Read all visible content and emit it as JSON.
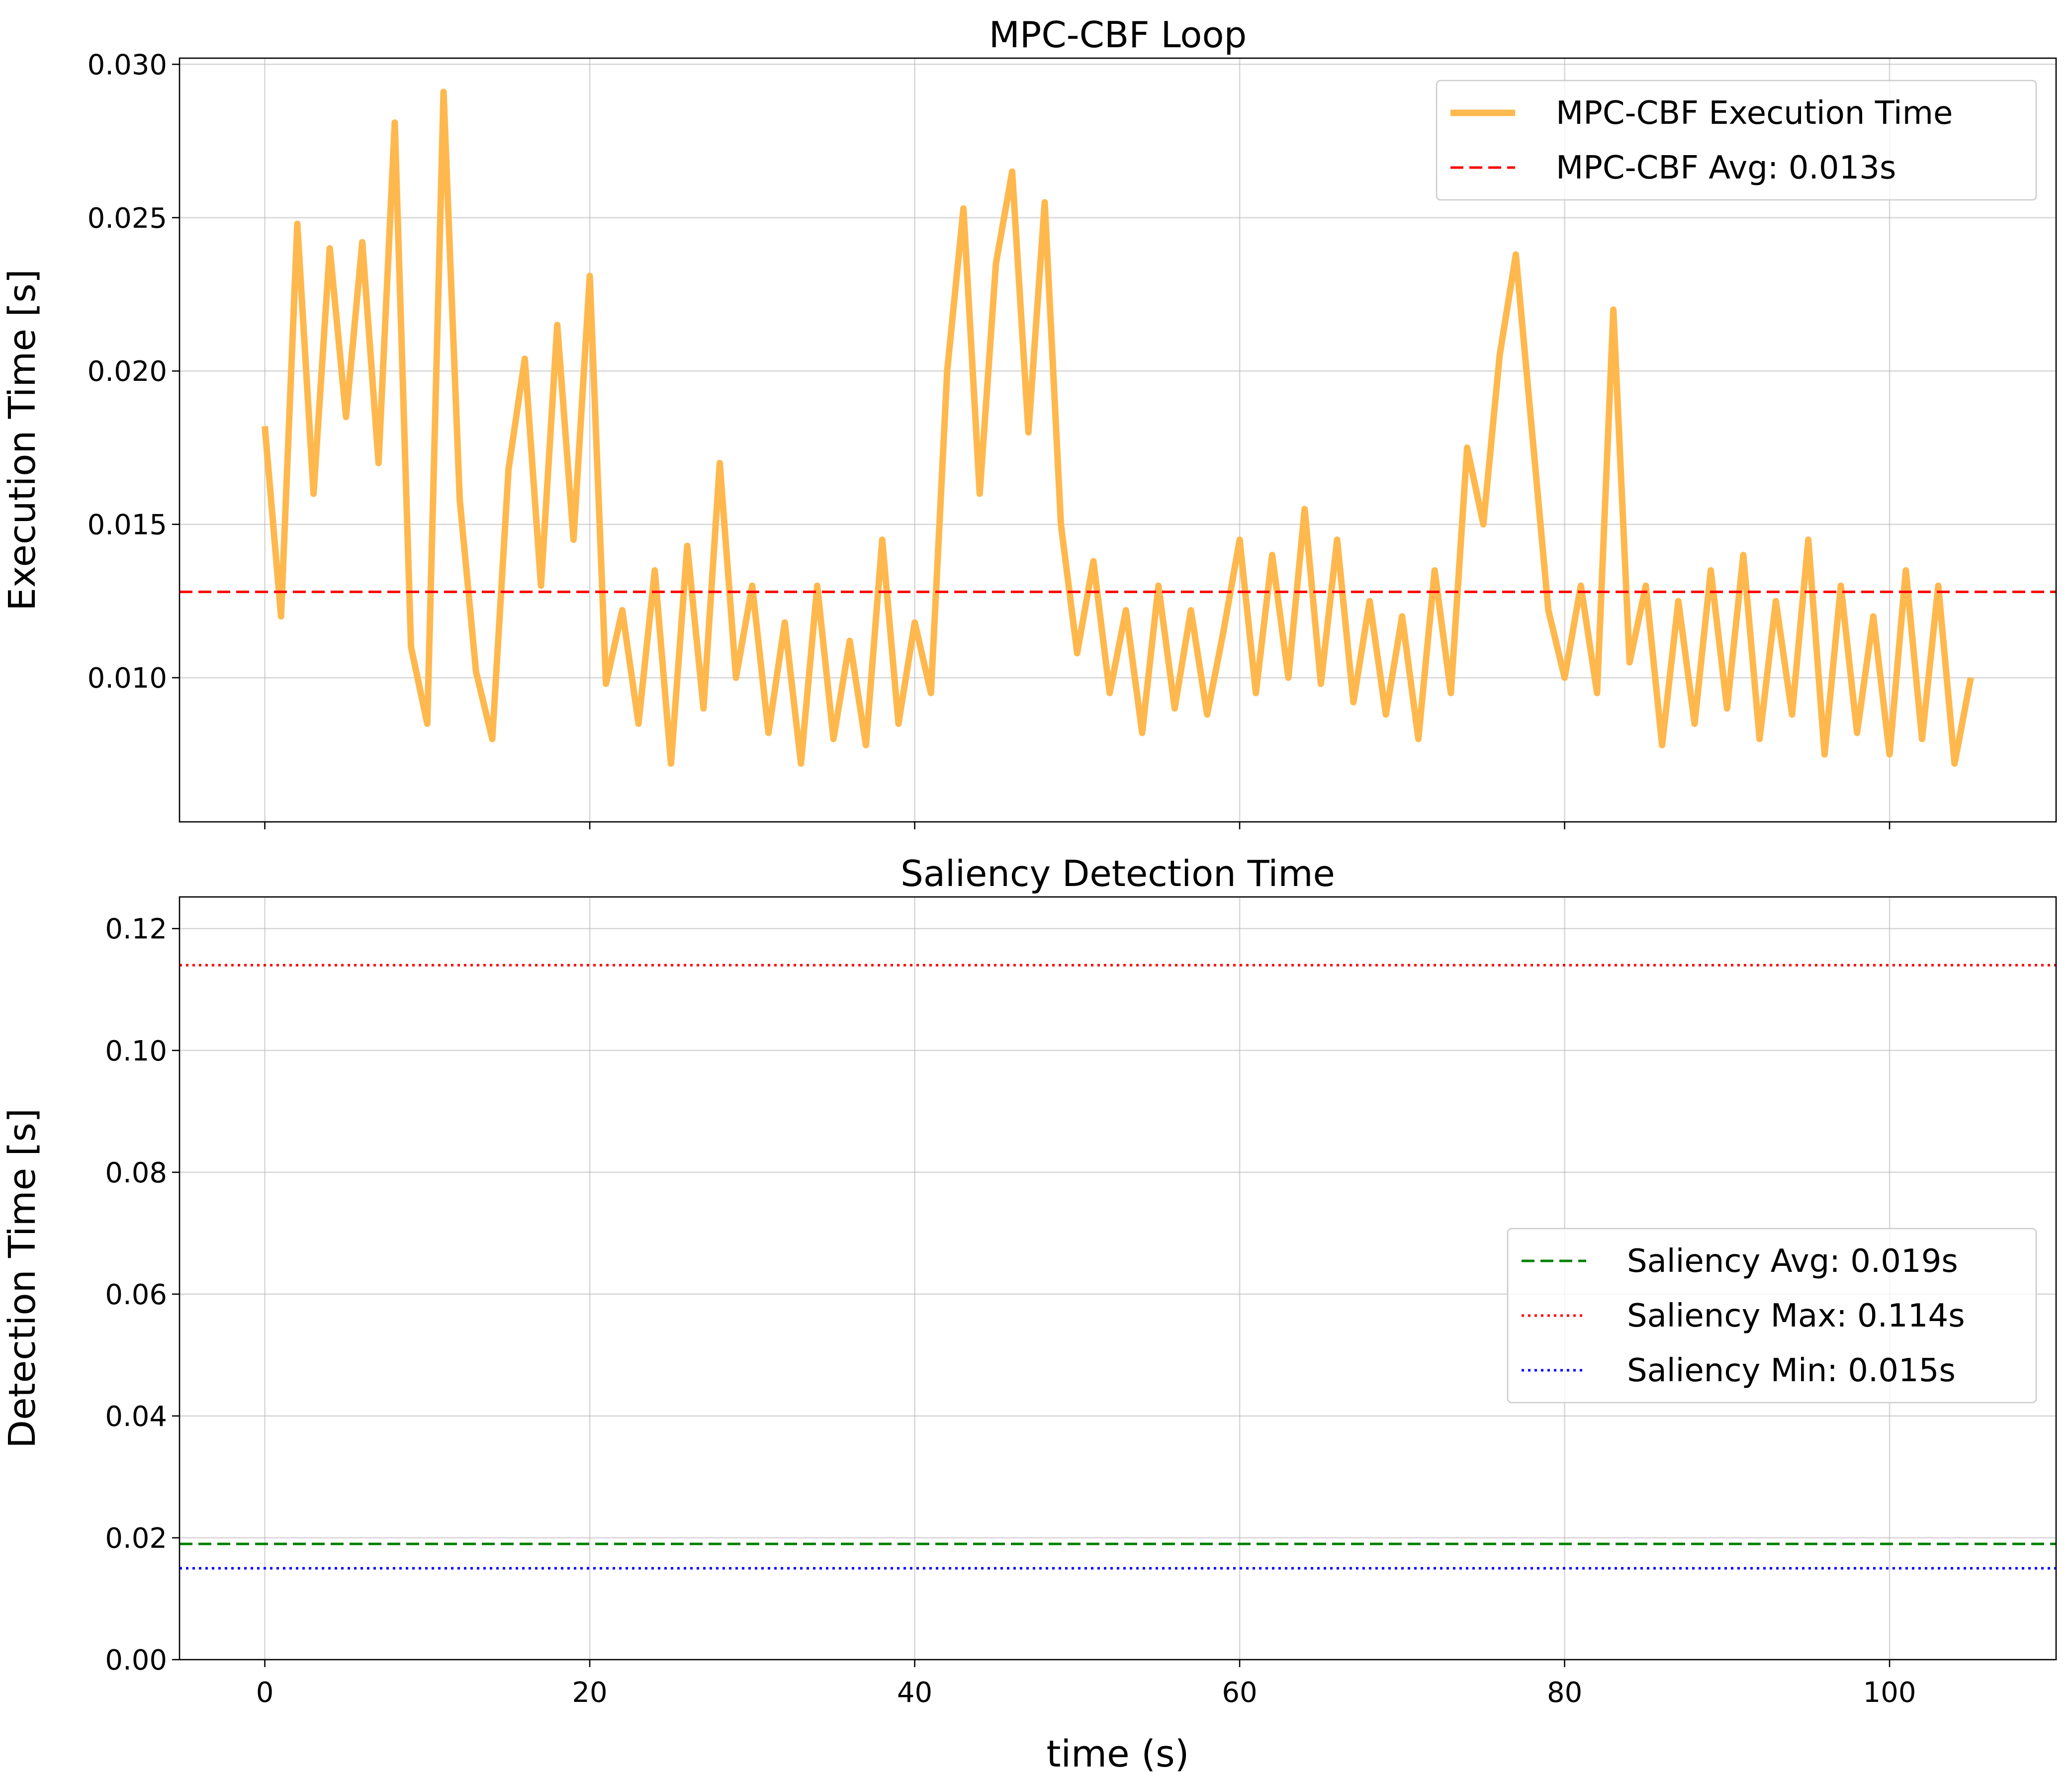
{
  "chart_data": [
    {
      "type": "line",
      "title": "MPC-CBF Loop",
      "ylabel": "Execution Time [s]",
      "x": [
        0,
        1,
        2,
        3,
        4,
        5,
        6,
        7,
        8,
        9,
        10,
        11,
        12,
        13,
        14,
        15,
        16,
        17,
        18,
        19,
        20,
        21,
        22,
        23,
        24,
        25,
        26,
        27,
        28,
        29,
        30,
        31,
        32,
        33,
        34,
        35,
        36,
        37,
        38,
        39,
        40,
        41,
        42,
        43,
        44,
        45,
        46,
        47,
        48,
        49,
        50,
        51,
        52,
        53,
        54,
        55,
        56,
        57,
        58,
        59,
        60,
        61,
        62,
        63,
        64,
        65,
        66,
        67,
        68,
        69,
        70,
        71,
        72,
        73,
        74,
        75,
        76,
        77,
        78,
        79,
        80,
        81,
        82,
        83,
        84,
        85,
        86,
        87,
        88,
        89,
        90,
        91,
        92,
        93,
        94,
        95,
        96,
        97,
        98,
        99,
        100,
        101,
        102,
        103,
        104,
        105
      ],
      "series": [
        {
          "name": "MPC-CBF Execution Time",
          "color": "#ffb84d",
          "values": [
            0.0182,
            0.012,
            0.0248,
            0.016,
            0.024,
            0.0185,
            0.0242,
            0.017,
            0.0281,
            0.011,
            0.0085,
            0.0291,
            0.0158,
            0.0102,
            0.008,
            0.0168,
            0.0204,
            0.013,
            0.0215,
            0.0145,
            0.0231,
            0.0098,
            0.0122,
            0.0085,
            0.0135,
            0.0072,
            0.0143,
            0.009,
            0.017,
            0.01,
            0.013,
            0.0082,
            0.0118,
            0.0072,
            0.013,
            0.008,
            0.0112,
            0.0078,
            0.0145,
            0.0085,
            0.0118,
            0.0095,
            0.02,
            0.0253,
            0.016,
            0.0235,
            0.0265,
            0.018,
            0.0255,
            0.015,
            0.0108,
            0.0138,
            0.0095,
            0.0122,
            0.0082,
            0.013,
            0.009,
            0.0122,
            0.0088,
            0.0115,
            0.0145,
            0.0095,
            0.014,
            0.01,
            0.0155,
            0.0098,
            0.0145,
            0.0092,
            0.0125,
            0.0088,
            0.012,
            0.008,
            0.0135,
            0.0095,
            0.0175,
            0.015,
            0.0205,
            0.0238,
            0.018,
            0.0122,
            0.01,
            0.013,
            0.0095,
            0.022,
            0.0105,
            0.013,
            0.0078,
            0.0125,
            0.0085,
            0.0135,
            0.009,
            0.014,
            0.008,
            0.0125,
            0.0088,
            0.0145,
            0.0075,
            0.013,
            0.0082,
            0.012,
            0.0075,
            0.0135,
            0.008,
            0.013,
            0.0072,
            0.01
          ]
        }
      ],
      "reference_lines": [
        {
          "label": "MPC-CBF Avg: 0.013s",
          "value": 0.0128,
          "color": "#ff0000",
          "style": "dashed"
        }
      ],
      "xlim": [
        -5.25,
        110.25
      ],
      "xticks": [
        0,
        20,
        40,
        60,
        80,
        100
      ],
      "show_xtick_labels": false,
      "ylim": [
        0.0053,
        0.0302
      ],
      "yticks": [
        {
          "value": 0.01,
          "label": "0.010"
        },
        {
          "value": 0.015,
          "label": "0.015"
        },
        {
          "value": 0.02,
          "label": "0.020"
        },
        {
          "value": 0.025,
          "label": "0.025"
        },
        {
          "value": 0.03,
          "label": "0.030"
        }
      ],
      "grid": true,
      "legend": "upper right"
    },
    {
      "type": "line",
      "title": "Saliency Detection Time",
      "ylabel": "Detection Time [s]",
      "xlabel": "time (s)",
      "series": [],
      "reference_lines": [
        {
          "label": "Saliency Avg: 0.019s",
          "value": 0.019,
          "color": "#008000",
          "style": "dashed"
        },
        {
          "label": "Saliency Max: 0.114s",
          "value": 0.114,
          "color": "#ff0000",
          "style": "dotted"
        },
        {
          "label": "Saliency Min: 0.015s",
          "value": 0.015,
          "color": "#0000ff",
          "style": "dotted"
        }
      ],
      "xlim": [
        -5.25,
        110.25
      ],
      "xticks": [
        0,
        20,
        40,
        60,
        80,
        100
      ],
      "show_xtick_labels": true,
      "ylim": [
        0,
        0.1252
      ],
      "yticks": [
        {
          "value": 0,
          "label": "0.00"
        },
        {
          "value": 0.02,
          "label": "0.02"
        },
        {
          "value": 0.04,
          "label": "0.04"
        },
        {
          "value": 0.06,
          "label": "0.06"
        },
        {
          "value": 0.08,
          "label": "0.08"
        },
        {
          "value": 0.1,
          "label": "0.10"
        },
        {
          "value": 0.12,
          "label": "0.12"
        }
      ],
      "grid": true,
      "legend": "center right"
    }
  ]
}
